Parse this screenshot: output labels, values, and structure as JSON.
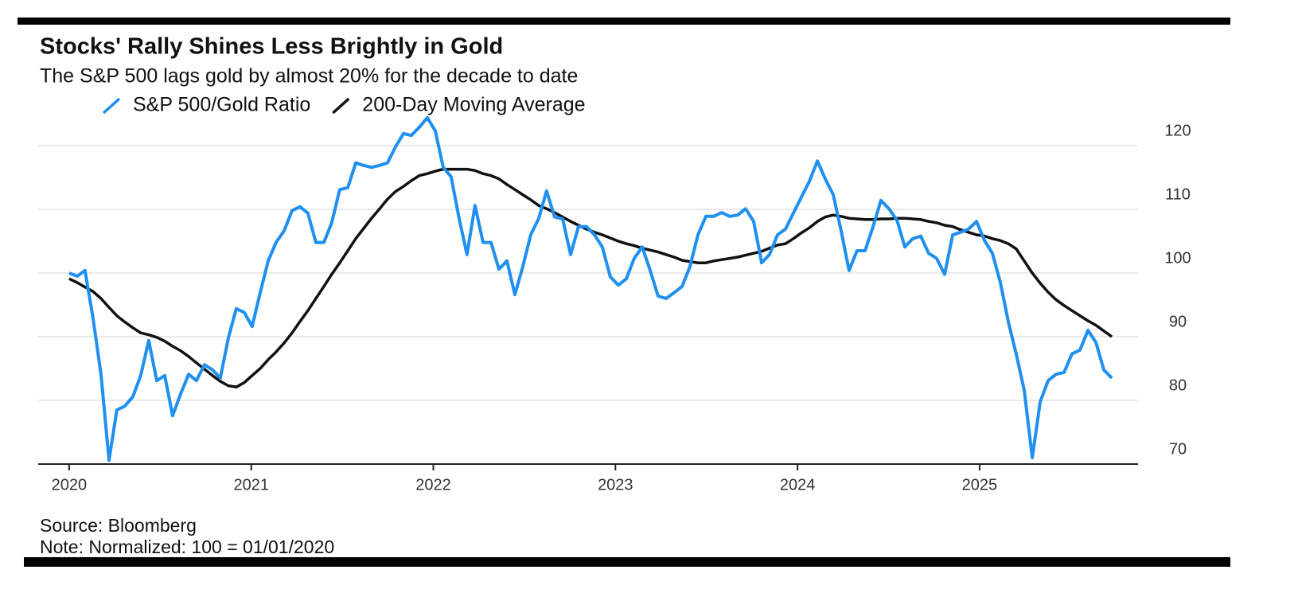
{
  "chart_data": {
    "type": "line",
    "title": "Stocks' Rally Shines Less Brightly in Gold",
    "subtitle": "The S&P 500 lags gold by almost 20% for the decade to date",
    "source": "Source: Bloomberg",
    "note": "Note: Normalized: 100 = 01/01/2020",
    "grid": true,
    "y_axis_side": "right",
    "xlim": [
      2019.83,
      2025.87
    ],
    "xticks": [
      2020,
      2021,
      2022,
      2023,
      2024,
      2025
    ],
    "ylim": [
      70,
      126
    ],
    "yticks": [
      70,
      80,
      90,
      100,
      110,
      120
    ],
    "x": [
      2020,
      2020.044,
      2020.087,
      2020.131,
      2020.175,
      2020.219,
      2020.262,
      2020.306,
      2020.35,
      2020.393,
      2020.437,
      2020.481,
      2020.525,
      2020.568,
      2020.612,
      2020.656,
      2020.699,
      2020.743,
      2020.787,
      2020.83,
      2020.874,
      2020.918,
      2020.962,
      2021.005,
      2021.049,
      2021.093,
      2021.136,
      2021.18,
      2021.224,
      2021.268,
      2021.311,
      2021.355,
      2021.399,
      2021.442,
      2021.486,
      2021.53,
      2021.574,
      2021.617,
      2021.661,
      2021.705,
      2021.748,
      2021.792,
      2021.836,
      2021.879,
      2021.923,
      2021.967,
      2022.011,
      2022.054,
      2022.098,
      2022.142,
      2022.185,
      2022.229,
      2022.273,
      2022.317,
      2022.36,
      2022.404,
      2022.448,
      2022.491,
      2022.535,
      2022.579,
      2022.622,
      2022.666,
      2022.71,
      2022.754,
      2022.797,
      2022.841,
      2022.885,
      2022.928,
      2022.972,
      2023.016,
      2023.06,
      2023.103,
      2023.147,
      2023.191,
      2023.234,
      2023.278,
      2023.322,
      2023.366,
      2023.409,
      2023.453,
      2023.497,
      2023.54,
      2023.584,
      2023.628,
      2023.671,
      2023.715,
      2023.759,
      2023.803,
      2023.846,
      2023.89,
      2023.934,
      2023.977,
      2024.021,
      2024.065,
      2024.109,
      2024.152,
      2024.196,
      2024.24,
      2024.283,
      2024.327,
      2024.371,
      2024.415,
      2024.458,
      2024.502,
      2024.546,
      2024.589,
      2024.633,
      2024.677,
      2024.72,
      2024.764,
      2024.808,
      2024.852,
      2024.895,
      2024.939,
      2024.983,
      2025.027,
      2025.07,
      2025.114,
      2025.158,
      2025.201,
      2025.245,
      2025.289,
      2025.333,
      2025.376,
      2025.42,
      2025.464,
      2025.507,
      2025.551,
      2025.595,
      2025.639,
      2025.682,
      2025.726
    ],
    "series": [
      {
        "name": "S&P 500/Gold Ratio",
        "color": "#1f8ff0",
        "values": [
          100,
          99.5,
          100.4,
          92.9,
          84.1,
          70.6,
          78.5,
          79.1,
          80.6,
          83.9,
          89.4,
          83.1,
          83.9,
          77.6,
          81,
          84.1,
          83.1,
          85.6,
          84.8,
          83.5,
          89.8,
          94.4,
          93.8,
          91.6,
          96.9,
          101.9,
          104.8,
          106.6,
          109.8,
          110.4,
          109.4,
          104.8,
          104.8,
          107.9,
          113.1,
          113.4,
          117.3,
          116.9,
          116.6,
          116.9,
          117.3,
          119.8,
          121.9,
          121.6,
          122.9,
          124.4,
          122.3,
          116.6,
          115.1,
          108.5,
          102.9,
          110.6,
          104.8,
          104.8,
          100.6,
          101.9,
          96.6,
          101,
          106,
          108.6,
          112.9,
          108.8,
          108.5,
          102.9,
          107.3,
          107.3,
          106,
          104.1,
          99.4,
          98.1,
          99.1,
          102.3,
          104.1,
          100.4,
          96.4,
          96,
          96.9,
          97.9,
          101,
          106,
          108.9,
          108.9,
          109.5,
          108.9,
          109.1,
          110.1,
          108.1,
          101.6,
          102.9,
          106,
          106.9,
          109.4,
          111.9,
          114.4,
          117.6,
          114.8,
          112.3,
          106.6,
          100.4,
          103.5,
          103.5,
          107.3,
          111.4,
          110.1,
          108.3,
          104.1,
          105.4,
          105.8,
          103.1,
          102.3,
          99.8,
          106,
          106.4,
          106.9,
          108.1,
          105.1,
          103.1,
          98.5,
          92.3,
          87.3,
          81.6,
          71,
          79.8,
          83.1,
          84.1,
          84.4,
          87.3,
          87.9,
          91,
          89.1,
          84.8,
          83.5
        ]
      },
      {
        "name": "200-Day Moving Average",
        "color": "#111111",
        "values": [
          99.1,
          98.5,
          97.8,
          97.1,
          96,
          94.6,
          93.3,
          92.3,
          91.4,
          90.6,
          90.3,
          89.9,
          89.3,
          88.5,
          87.8,
          86.9,
          85.9,
          84.9,
          83.9,
          83,
          82.3,
          82.1,
          82.8,
          83.9,
          85,
          86.4,
          87.6,
          89,
          90.6,
          92.4,
          94.1,
          96,
          97.9,
          99.8,
          101.6,
          103.5,
          105.4,
          107,
          108.6,
          110.1,
          111.6,
          112.8,
          113.6,
          114.5,
          115.3,
          115.6,
          116,
          116.3,
          116.3,
          116.3,
          116.3,
          116.1,
          115.6,
          115.3,
          114.8,
          113.9,
          113.1,
          112.3,
          111.5,
          110.6,
          110.1,
          109.5,
          108.8,
          108.1,
          107.5,
          106.9,
          106.4,
          106,
          105.5,
          105,
          104.6,
          104.3,
          103.9,
          103.6,
          103.3,
          102.9,
          102.5,
          102,
          101.8,
          101.6,
          101.6,
          101.9,
          102.1,
          102.3,
          102.5,
          102.8,
          103.1,
          103.4,
          103.9,
          104.4,
          104.6,
          105.4,
          106.3,
          107.1,
          108.1,
          108.8,
          109.1,
          108.9,
          108.6,
          108.5,
          108.4,
          108.4,
          108.5,
          108.5,
          108.6,
          108.6,
          108.5,
          108.4,
          108.1,
          107.9,
          107.5,
          107.3,
          106.8,
          106.4,
          106,
          105.8,
          105.4,
          105.1,
          104.6,
          103.8,
          101.9,
          100,
          98.4,
          97,
          95.8,
          94.9,
          94.1,
          93.3,
          92.5,
          91.8,
          90.9,
          90
        ]
      }
    ]
  }
}
